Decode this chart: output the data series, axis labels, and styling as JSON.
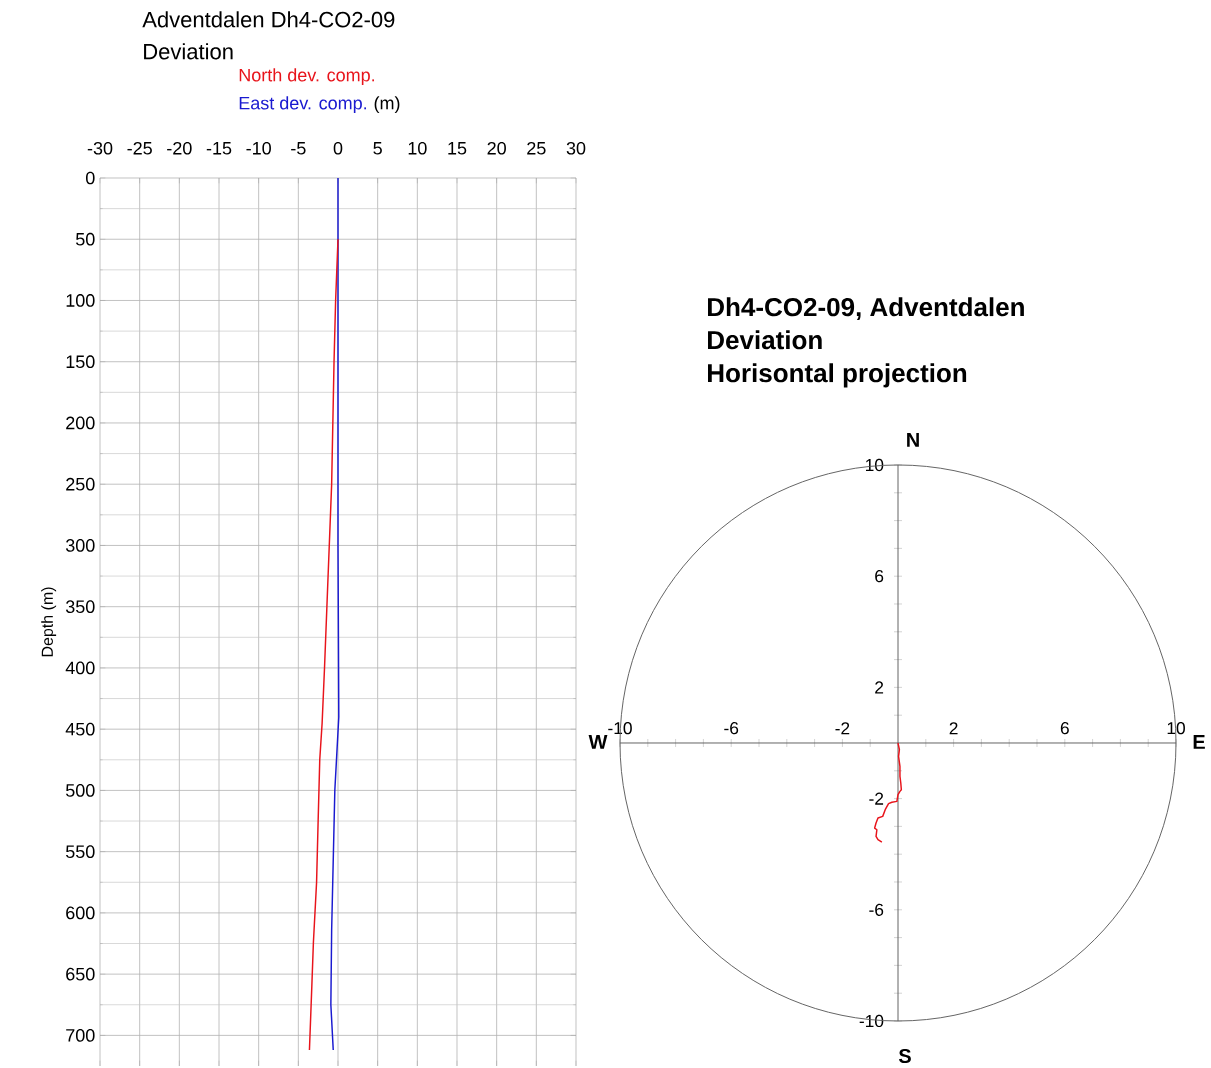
{
  "chart_data": [
    {
      "type": "line",
      "title": "Adventdalen  Dh4-CO2-09",
      "subtitle": "Deviation",
      "xlabel": "(m)",
      "ylabel": "Depth (m)",
      "series": [
        {
          "name": "North dev. comp.",
          "color": "#e8141b",
          "x": [
            0,
            -0.3,
            -0.5,
            -0.8,
            -1.4,
            -1.7,
            -2.0,
            -2.3,
            -2.5,
            -2.7,
            -3.1,
            -3.3,
            -3.6
          ],
          "values": [
            50,
            100,
            150,
            250,
            350,
            400,
            445,
            475,
            524,
            575,
            624,
            660,
            712
          ]
        },
        {
          "name": "East  dev. comp.",
          "color": "#1a1ad0",
          "x": [
            0,
            0,
            0,
            0,
            0.1,
            -0.4,
            -0.8,
            -0.9,
            -0.6
          ],
          "values": [
            0,
            100,
            200,
            300,
            440,
            500,
            614,
            675,
            712
          ]
        }
      ],
      "xlim": [
        -30,
        30
      ],
      "xticks": [
        -30,
        -25,
        -20,
        -15,
        -10,
        -5,
        0,
        5,
        10,
        15,
        20,
        25,
        30
      ],
      "ylim": [
        725,
        0
      ],
      "yticks": [
        0,
        50,
        100,
        150,
        200,
        250,
        300,
        350,
        400,
        450,
        500,
        550,
        600,
        650,
        700
      ],
      "grid": true
    },
    {
      "type": "line",
      "title": "Dh4-CO2-09,  Adventdalen",
      "subtitle": "Deviation",
      "annotations": [
        "Horisontal projection",
        "N",
        "S",
        "W",
        "E"
      ],
      "series": [
        {
          "color": "#e8141b",
          "x": [
            0,
            0.05,
            0.02,
            0.07,
            0.07,
            0.1,
            0.12,
            0.07,
            0,
            -0.04,
            -0.22,
            -0.34,
            -0.46,
            -0.55,
            -0.72,
            -0.79,
            -0.84,
            -0.76,
            -0.79,
            -0.72,
            -0.58
          ],
          "values": [
            0,
            -0.24,
            -0.48,
            -0.84,
            -1.2,
            -1.44,
            -1.68,
            -1.74,
            -1.86,
            -2.1,
            -2.13,
            -2.18,
            -2.4,
            -2.64,
            -2.7,
            -2.88,
            -3.06,
            -3.12,
            -3.36,
            -3.48,
            -3.57
          ]
        }
      ],
      "xlim": [
        -10,
        10
      ],
      "ylim": [
        -10,
        10
      ],
      "xticks": [
        -10,
        {
          "value": -9,
          "label": null
        },
        {
          "value": -8,
          "label": null
        },
        {
          "value": -7,
          "label": null
        },
        -6,
        {
          "value": -5,
          "label": null
        },
        {
          "value": -4,
          "label": null
        },
        {
          "value": -3,
          "label": null
        },
        -2,
        {
          "value": -1,
          "label": null
        },
        {
          "value": 1,
          "label": null
        },
        2,
        {
          "value": 3,
          "label": null
        },
        {
          "value": 4,
          "label": null
        },
        {
          "value": 5,
          "label": null
        },
        6,
        {
          "value": 7,
          "label": null
        },
        {
          "value": 8,
          "label": null
        },
        {
          "value": 9,
          "label": null
        },
        10
      ],
      "yticks": [
        -10,
        {
          "value": -9,
          "label": null
        },
        {
          "value": -8,
          "label": null
        },
        {
          "value": -7,
          "label": null
        },
        -6,
        {
          "value": -5,
          "label": null
        },
        {
          "value": -4,
          "label": null
        },
        {
          "value": -3,
          "label": null
        },
        -2,
        {
          "value": -1,
          "label": null
        },
        {
          "value": 1,
          "label": null
        },
        2,
        {
          "value": 3,
          "label": null
        },
        {
          "value": 4,
          "label": null
        },
        {
          "value": 5,
          "label": null
        },
        6,
        {
          "value": 7,
          "label": null
        },
        {
          "value": 8,
          "label": null
        },
        {
          "value": 9,
          "label": null
        },
        10
      ]
    }
  ]
}
